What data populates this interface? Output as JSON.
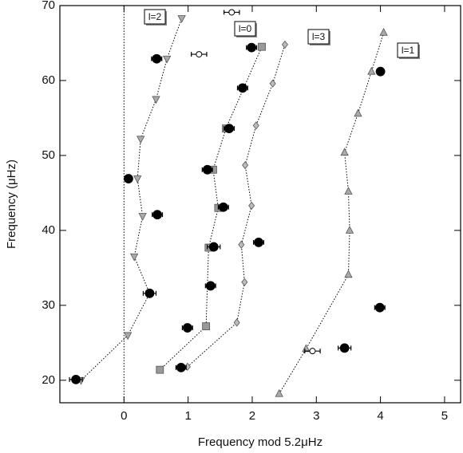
{
  "chart_data": {
    "type": "scatter",
    "x_label": "Frequency mod 5.2μHz",
    "y_label": "Frequency (μHz)",
    "xlim": [
      -1,
      5.25
    ],
    "ylim": [
      17,
      70
    ],
    "xticks": [
      0,
      1,
      2,
      3,
      4,
      5
    ],
    "yticks": [
      20,
      30,
      40,
      50,
      60,
      70
    ],
    "vline": 0,
    "series": [
      {
        "name": "l=2",
        "marker": "triangle-down",
        "color": "#aaaaaa",
        "line": true,
        "x": [
          -0.67,
          0.06,
          0.4,
          0.16,
          0.29,
          0.21,
          0.26,
          0.5,
          0.67,
          0.9
        ],
        "values": [
          20,
          26,
          31.6,
          36.5,
          41.9,
          46.9,
          52.2,
          57.5,
          62.9,
          68.3
        ]
      },
      {
        "name": "l=0",
        "marker": "square",
        "color": "#999999",
        "line": true,
        "x": [
          0.56,
          1.28,
          1.32,
          1.47,
          1.39,
          1.59,
          2.15
        ],
        "values": [
          21.4,
          27.2,
          37.7,
          43.0,
          48.1,
          53.6,
          64.5
        ]
      },
      {
        "name": "l=3",
        "marker": "diamond",
        "color": "#bbbbbb",
        "line": true,
        "x": [
          0.99,
          1.76,
          1.88,
          1.83,
          1.99,
          1.89,
          2.06,
          2.32,
          2.51
        ],
        "values": [
          21.8,
          27.7,
          33.1,
          38.1,
          43.3,
          48.7,
          54.0,
          59.6,
          64.8
        ]
      },
      {
        "name": "l=1",
        "marker": "triangle-up",
        "color": "#aaaaaa",
        "line": true,
        "x": [
          2.42,
          2.84,
          3.5,
          3.52,
          3.5,
          3.44,
          3.65,
          3.86,
          4.05
        ],
        "values": [
          18.2,
          24.2,
          34.1,
          40.0,
          45.2,
          50.4,
          55.6,
          61.2,
          66.4
        ]
      },
      {
        "marker": "circle",
        "color": "#000000",
        "x": [
          -0.75,
          0.89,
          0.99,
          2.1,
          0.4,
          1.35,
          1.4,
          1.55,
          0.52,
          0.07,
          1.3,
          1.64,
          1.85,
          1.99,
          0.51,
          3.44,
          3.99,
          4.0
        ],
        "values": [
          20.1,
          21.7,
          27.0,
          38.4,
          31.6,
          32.6,
          37.8,
          43.1,
          42.1,
          46.9,
          48.1,
          53.6,
          59.0,
          64.4,
          62.9,
          24.3,
          29.7,
          61.2
        ],
        "xerr": [
          0.1,
          0.08,
          0.08,
          0.08,
          0.1,
          0.08,
          0.1,
          0.08,
          0.08,
          0.05,
          0.08,
          0.08,
          0.08,
          0.08,
          0.08,
          0.1,
          0.08,
          0.05
        ]
      },
      {
        "marker": "circle-open",
        "color": "#ffffff",
        "x": [
          1.68,
          1.17,
          2.94
        ],
        "values": [
          69.1,
          63.5,
          23.9
        ],
        "xerr": [
          0.12,
          0.12,
          0.12
        ]
      }
    ]
  }
}
